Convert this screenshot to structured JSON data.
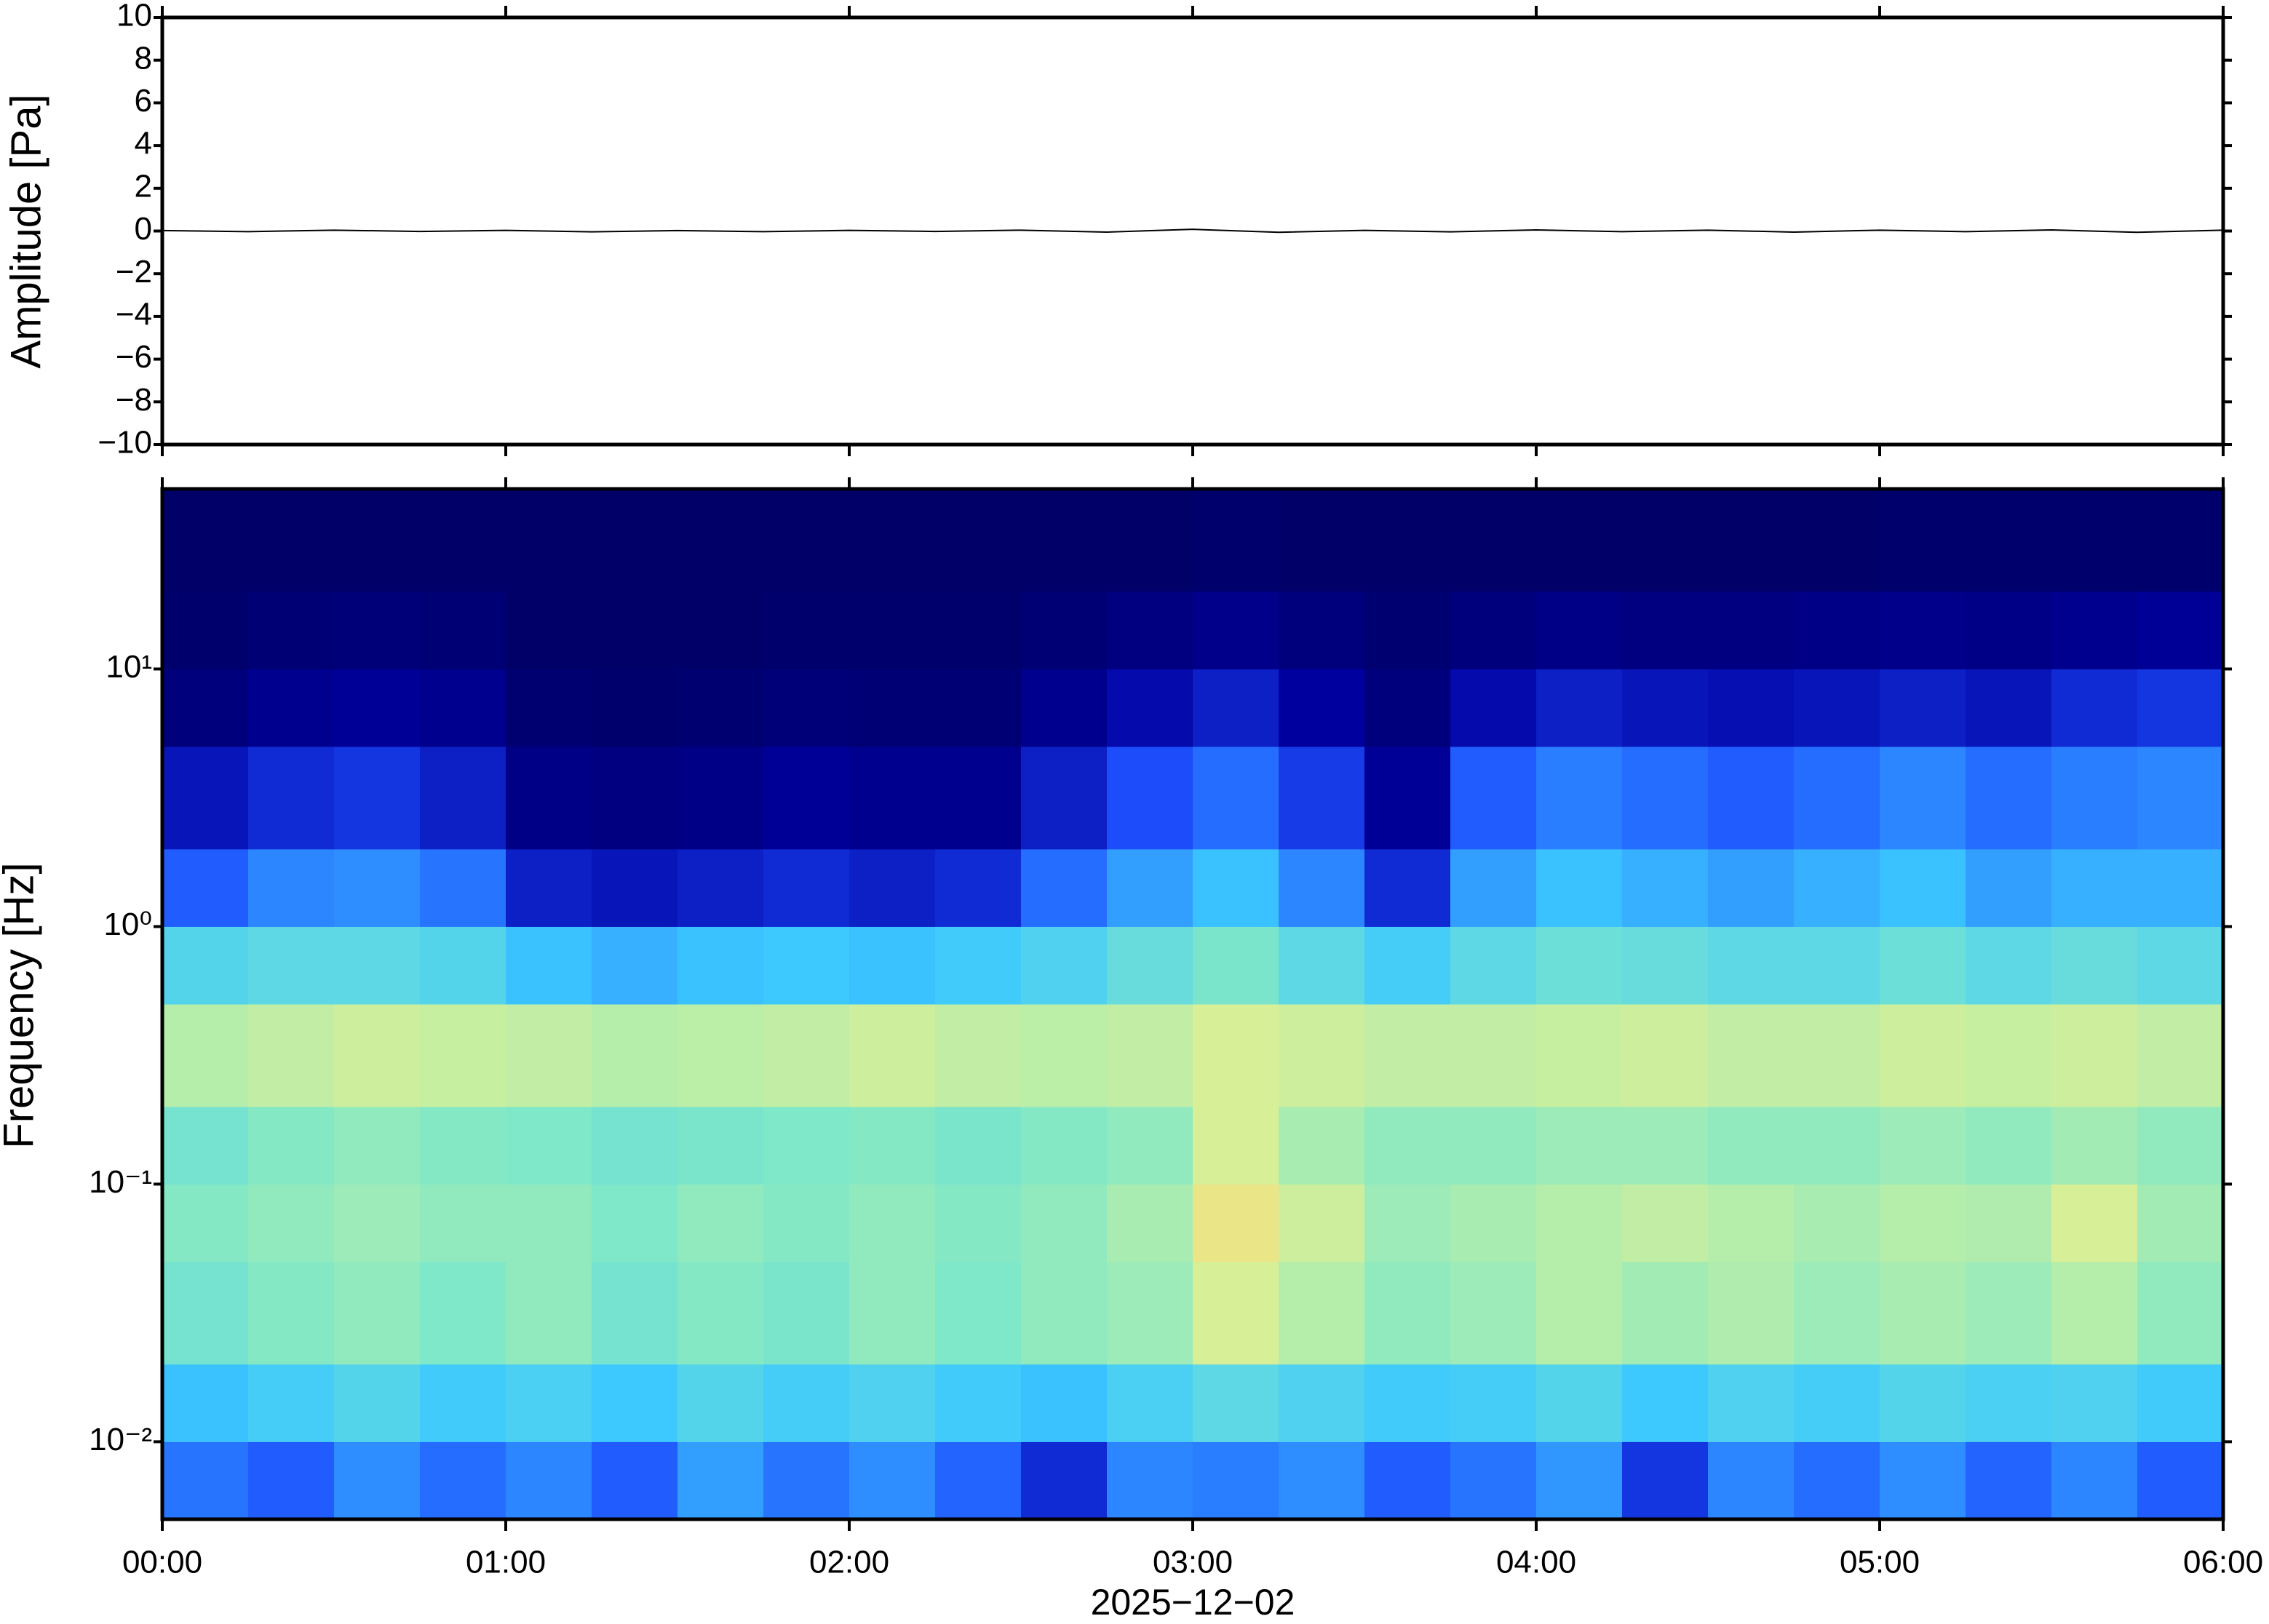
{
  "chart_data": [
    {
      "type": "line",
      "ylabel": "Amplitude [Pa]",
      "x": [
        0,
        15,
        30,
        45,
        60,
        75,
        90,
        105,
        120,
        135,
        150,
        165,
        180,
        195,
        210,
        225,
        240,
        255,
        270,
        285,
        300,
        315,
        330,
        345,
        360
      ],
      "values": [
        0.02,
        -0.03,
        0.04,
        -0.02,
        0.03,
        -0.04,
        0.02,
        -0.03,
        0.03,
        -0.02,
        0.04,
        -0.05,
        0.08,
        -0.06,
        0.03,
        -0.04,
        0.05,
        -0.03,
        0.04,
        -0.05,
        0.04,
        -0.03,
        0.05,
        -0.06,
        0.04
      ],
      "color": "#000000",
      "xlim": [
        0,
        360
      ],
      "xticks": [
        0,
        60,
        120,
        180,
        240,
        300,
        360
      ],
      "ylim": [
        -10,
        10
      ],
      "yticks": [
        {
          "value": -10,
          "label": "−10"
        },
        {
          "value": -8,
          "label": "−8"
        },
        {
          "value": -6,
          "label": "−6"
        },
        {
          "value": -4,
          "label": "−4"
        },
        {
          "value": -2,
          "label": "−2"
        },
        0,
        2,
        4,
        6,
        8,
        10
      ]
    },
    {
      "type": "heatmap",
      "ylabel": "Frequency [Hz]",
      "xlabel": "2025−12−02",
      "ylog": true,
      "ylim": [
        0.005,
        50
      ],
      "yticks": [
        {
          "value": 0.01,
          "label": "10⁻²"
        },
        {
          "value": 0.1,
          "label": "10⁻¹"
        },
        {
          "value": 1,
          "label": "10⁰"
        },
        {
          "value": 10,
          "label": "10¹"
        }
      ],
      "xlim": [
        0,
        360
      ],
      "xticks": [
        {
          "value": 0,
          "label": "00:00"
        },
        {
          "value": 60,
          "label": "01:00"
        },
        {
          "value": 120,
          "label": "02:00"
        },
        {
          "value": 180,
          "label": "03:00"
        },
        {
          "value": 240,
          "label": "04:00"
        },
        {
          "value": 300,
          "label": "05:00"
        },
        {
          "value": 360,
          "label": "06:00"
        }
      ],
      "time_bins": [
        0,
        15,
        30,
        45,
        60,
        75,
        90,
        105,
        120,
        135,
        150,
        165,
        180,
        195,
        210,
        225,
        240,
        255,
        270,
        285,
        300,
        315,
        330,
        345,
        360
      ],
      "freq_bins": [
        0.005,
        0.01,
        0.02,
        0.05,
        0.1,
        0.2,
        0.5,
        1,
        2,
        5,
        10,
        20,
        50
      ],
      "colormap": [
        "#000064",
        "#0000a0",
        "#1e50ff",
        "#3cc8ff",
        "#80e8c8",
        "#d6f098",
        "#f8e07e",
        "#f5a55a"
      ],
      "values": [
        [
          0.33,
          0.3,
          0.36,
          0.32,
          0.35,
          0.3,
          0.38,
          0.33,
          0.36,
          0.31,
          0.22,
          0.35,
          0.34,
          0.36,
          0.3,
          0.33,
          0.37,
          0.24,
          0.35,
          0.32,
          0.36,
          0.31,
          0.35,
          0.3
        ],
        [
          0.42,
          0.45,
          0.48,
          0.44,
          0.46,
          0.43,
          0.48,
          0.45,
          0.47,
          0.44,
          0.42,
          0.46,
          0.5,
          0.47,
          0.44,
          0.45,
          0.48,
          0.43,
          0.47,
          0.45,
          0.48,
          0.46,
          0.47,
          0.44
        ],
        [
          0.55,
          0.58,
          0.6,
          0.57,
          0.6,
          0.55,
          0.58,
          0.56,
          0.6,
          0.57,
          0.6,
          0.62,
          0.72,
          0.66,
          0.6,
          0.62,
          0.66,
          0.63,
          0.65,
          0.62,
          0.64,
          0.62,
          0.66,
          0.6
        ],
        [
          0.58,
          0.6,
          0.62,
          0.6,
          0.6,
          0.57,
          0.6,
          0.58,
          0.6,
          0.58,
          0.6,
          0.64,
          0.8,
          0.7,
          0.62,
          0.64,
          0.66,
          0.68,
          0.66,
          0.64,
          0.66,
          0.65,
          0.72,
          0.63
        ],
        [
          0.55,
          0.58,
          0.6,
          0.58,
          0.57,
          0.55,
          0.56,
          0.57,
          0.58,
          0.56,
          0.58,
          0.6,
          0.72,
          0.64,
          0.6,
          0.6,
          0.62,
          0.62,
          0.6,
          0.6,
          0.62,
          0.6,
          0.63,
          0.6
        ],
        [
          0.66,
          0.68,
          0.7,
          0.69,
          0.68,
          0.66,
          0.67,
          0.68,
          0.7,
          0.68,
          0.67,
          0.68,
          0.72,
          0.7,
          0.68,
          0.68,
          0.69,
          0.7,
          0.68,
          0.68,
          0.7,
          0.69,
          0.7,
          0.68
        ],
        [
          0.48,
          0.5,
          0.5,
          0.48,
          0.42,
          0.4,
          0.42,
          0.43,
          0.42,
          0.44,
          0.47,
          0.52,
          0.56,
          0.5,
          0.45,
          0.5,
          0.53,
          0.52,
          0.5,
          0.5,
          0.53,
          0.5,
          0.52,
          0.5
        ],
        [
          0.3,
          0.35,
          0.36,
          0.33,
          0.2,
          0.18,
          0.2,
          0.22,
          0.2,
          0.22,
          0.32,
          0.38,
          0.42,
          0.35,
          0.22,
          0.38,
          0.42,
          0.4,
          0.38,
          0.4,
          0.42,
          0.38,
          0.4,
          0.4
        ],
        [
          0.18,
          0.22,
          0.24,
          0.2,
          0.08,
          0.07,
          0.08,
          0.12,
          0.1,
          0.1,
          0.2,
          0.28,
          0.32,
          0.25,
          0.12,
          0.3,
          0.34,
          0.32,
          0.3,
          0.32,
          0.35,
          0.32,
          0.34,
          0.35
        ],
        [
          0.06,
          0.1,
          0.12,
          0.1,
          0.03,
          0.02,
          0.03,
          0.05,
          0.04,
          0.04,
          0.1,
          0.16,
          0.2,
          0.14,
          0.06,
          0.16,
          0.2,
          0.18,
          0.17,
          0.18,
          0.2,
          0.18,
          0.22,
          0.24
        ],
        [
          0.02,
          0.04,
          0.05,
          0.04,
          0.01,
          0.01,
          0.01,
          0.02,
          0.02,
          0.02,
          0.04,
          0.07,
          0.09,
          0.06,
          0.03,
          0.06,
          0.08,
          0.07,
          0.07,
          0.08,
          0.09,
          0.08,
          0.1,
          0.12
        ],
        [
          0.01,
          0.01,
          0.01,
          0.01,
          0.01,
          0.01,
          0.01,
          0.01,
          0.01,
          0.01,
          0.01,
          0.01,
          0.02,
          0.01,
          0.01,
          0.01,
          0.01,
          0.01,
          0.01,
          0.01,
          0.02,
          0.02,
          0.02,
          0.02
        ]
      ]
    }
  ]
}
